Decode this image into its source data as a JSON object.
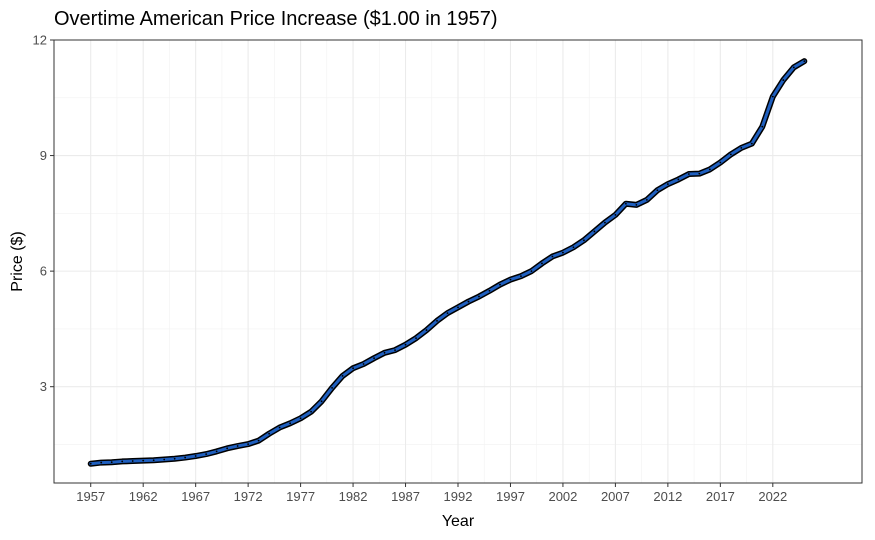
{
  "chart_data": {
    "type": "line",
    "title": "Overtime American Price Increase ($1.00 in 1957)",
    "xlabel": "Year",
    "ylabel": "Price ($)",
    "xlim": [
      1953.5,
      2030.5
    ],
    "ylim": [
      0.5,
      12
    ],
    "xticks": [
      1957,
      1962,
      1967,
      1972,
      1977,
      1982,
      1987,
      1992,
      1997,
      2002,
      2007,
      2012,
      2017,
      2022
    ],
    "yticks": [
      3,
      6,
      9,
      12
    ],
    "grid": true,
    "legend": "none",
    "series": [
      {
        "color": "#1f5fbf",
        "outline_color": "#000000",
        "x": [
          1957,
          1958,
          1959,
          1960,
          1961,
          1962,
          1963,
          1964,
          1965,
          1966,
          1967,
          1968,
          1969,
          1970,
          1971,
          1972,
          1973,
          1974,
          1975,
          1976,
          1977,
          1978,
          1979,
          1980,
          1981,
          1982,
          1983,
          1984,
          1985,
          1986,
          1987,
          1988,
          1989,
          1990,
          1991,
          1992,
          1993,
          1994,
          1995,
          1996,
          1997,
          1998,
          1999,
          2000,
          2001,
          2002,
          2003,
          2004,
          2005,
          2006,
          2007,
          2008,
          2009,
          2010,
          2011,
          2012,
          2013,
          2014,
          2015,
          2016,
          2017,
          2018,
          2019,
          2020,
          2021,
          2022,
          2023,
          2024,
          2025
        ],
        "y": [
          1.0,
          1.03,
          1.04,
          1.06,
          1.07,
          1.08,
          1.09,
          1.11,
          1.13,
          1.16,
          1.2,
          1.25,
          1.32,
          1.4,
          1.46,
          1.51,
          1.6,
          1.78,
          1.94,
          2.05,
          2.18,
          2.35,
          2.62,
          2.97,
          3.28,
          3.48,
          3.59,
          3.74,
          3.88,
          3.95,
          4.09,
          4.26,
          4.47,
          4.71,
          4.91,
          5.06,
          5.21,
          5.34,
          5.49,
          5.65,
          5.78,
          5.87,
          6.0,
          6.2,
          6.38,
          6.48,
          6.62,
          6.8,
          7.03,
          7.26,
          7.46,
          7.75,
          7.72,
          7.85,
          8.1,
          8.26,
          8.38,
          8.52,
          8.53,
          8.64,
          8.82,
          9.03,
          9.2,
          9.31,
          9.75,
          10.53,
          10.96,
          11.29,
          11.45
        ]
      }
    ]
  }
}
